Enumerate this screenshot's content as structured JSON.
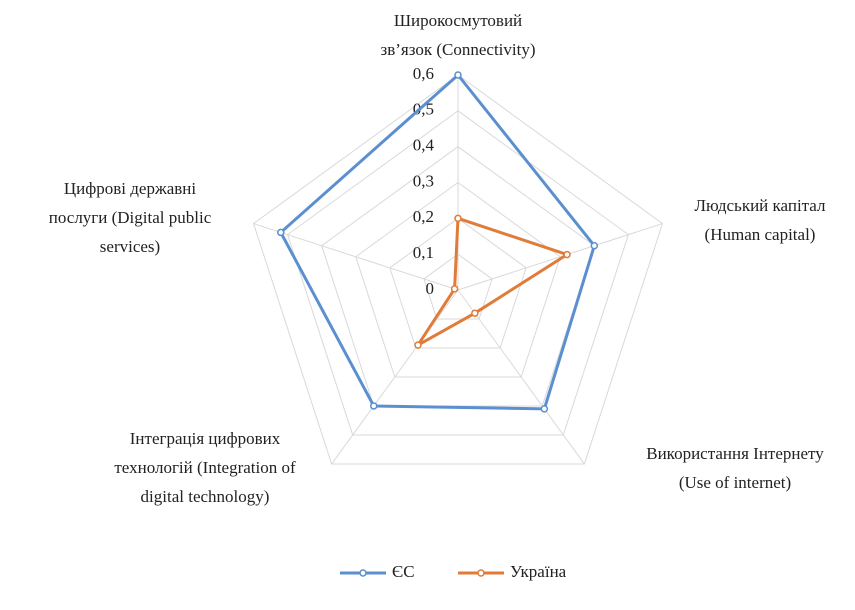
{
  "chart_data": {
    "type": "radar",
    "categories": [
      [
        "Широкосмутовий",
        "зв’язок (Connectivity)"
      ],
      [
        "Людський капітал",
        "(Human capital)"
      ],
      [
        "Використання Інтернету",
        "(Use of internet)"
      ],
      [
        "Інтеграція цифрових",
        "технологій  (Integration of",
        "digital technology)"
      ],
      [
        "Цифрові державні",
        "послуги (Digital public",
        "services)"
      ]
    ],
    "series": [
      {
        "name": "ЄС",
        "color": "#5b8fd0",
        "values": [
          0.6,
          0.4,
          0.41,
          0.4,
          0.52
        ]
      },
      {
        "name": "Україна",
        "color": "#e07b39",
        "values": [
          0.2,
          0.32,
          0.08,
          0.19,
          0.01
        ]
      }
    ],
    "ylim": [
      0,
      0.6
    ],
    "yticks": [
      0,
      {
        "value": 0.1,
        "label": "0,1"
      },
      {
        "value": 0.2,
        "label": "0,2"
      },
      {
        "value": 0.3,
        "label": "0,3"
      },
      {
        "value": 0.4,
        "label": "0,4"
      },
      {
        "value": 0.5,
        "label": "0,5"
      },
      {
        "value": 0.6,
        "label": "0,6"
      }
    ],
    "grid": true,
    "legend": "bottom"
  }
}
